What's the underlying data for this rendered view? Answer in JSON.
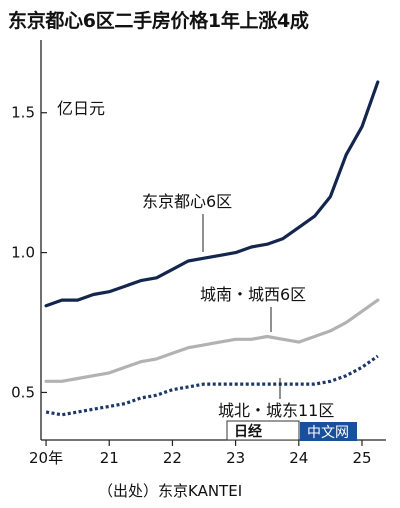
{
  "header": {
    "title": "东京都心6区二手房价格1年上涨4成"
  },
  "footer": {
    "source": "（出处）东京KANTEI"
  },
  "watermark": {
    "text": "中文网",
    "logo_text": "日经"
  },
  "colors": {
    "tokyo_center": "#14264d",
    "jonan_josei": "#b2b2b2",
    "johoku_joto": "#1d3766",
    "axis": "#222222"
  },
  "chart_data": {
    "type": "line",
    "title": "东京都心6区二手房价格1年上涨4成",
    "unit_label": "亿日元",
    "xlabel": "",
    "ylabel": "",
    "x_tick_labels": [
      "20年",
      "21",
      "22",
      "23",
      "24",
      "25"
    ],
    "x_ticks": [
      2020,
      2021,
      2022,
      2023,
      2024,
      2025
    ],
    "xlim": [
      2019.92,
      2025.38
    ],
    "y_tick_labels": [
      "0.5",
      "1.0",
      "1.5"
    ],
    "y_ticks": [
      0.5,
      1.0,
      1.5
    ],
    "ylim": [
      0.33,
      1.76
    ],
    "grid": false,
    "x": [
      2020.0,
      2020.25,
      2020.5,
      2020.75,
      2021.0,
      2021.25,
      2021.5,
      2021.75,
      2022.0,
      2022.25,
      2022.5,
      2022.75,
      2023.0,
      2023.25,
      2023.5,
      2023.75,
      2024.0,
      2024.25,
      2024.5,
      2024.75,
      2025.0,
      2025.25
    ],
    "series": [
      {
        "name": "东京都心6区",
        "style": "solid-dark",
        "values": [
          0.81,
          0.83,
          0.83,
          0.85,
          0.86,
          0.88,
          0.9,
          0.91,
          0.94,
          0.97,
          0.98,
          0.99,
          1.0,
          1.02,
          1.03,
          1.05,
          1.09,
          1.13,
          1.2,
          1.35,
          1.45,
          1.61
        ]
      },
      {
        "name": "城南・城西6区",
        "style": "solid-gray",
        "values": [
          0.54,
          0.54,
          0.55,
          0.56,
          0.57,
          0.59,
          0.61,
          0.62,
          0.64,
          0.66,
          0.67,
          0.68,
          0.69,
          0.69,
          0.7,
          0.69,
          0.68,
          0.7,
          0.72,
          0.75,
          0.79,
          0.83
        ]
      },
      {
        "name": "城北・城东11区",
        "style": "dotted-dark",
        "values": [
          0.43,
          0.42,
          0.43,
          0.44,
          0.45,
          0.46,
          0.48,
          0.49,
          0.51,
          0.52,
          0.53,
          0.53,
          0.53,
          0.53,
          0.53,
          0.53,
          0.53,
          0.53,
          0.54,
          0.56,
          0.59,
          0.63
        ]
      }
    ]
  }
}
